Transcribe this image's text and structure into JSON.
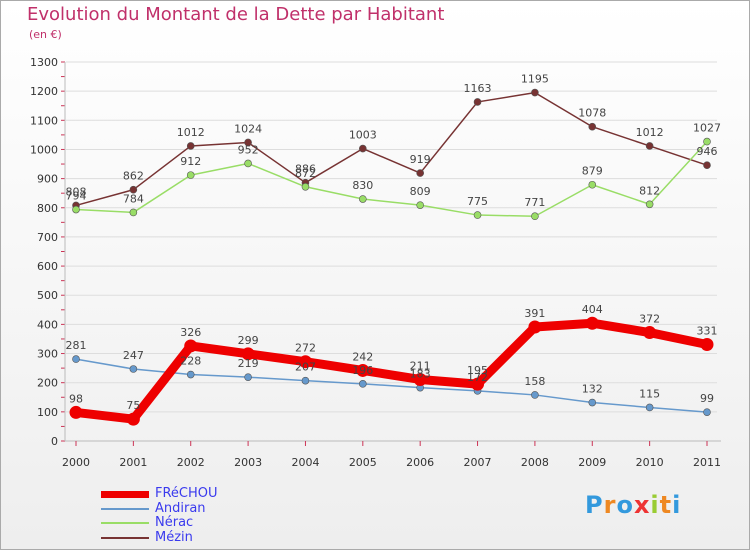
{
  "header": {
    "title": "Evolution du Montant de la Dette par Habitant",
    "subtitle": "(en €)"
  },
  "logo": {
    "text": "Proxiti"
  },
  "chart_data": {
    "type": "line",
    "title": "Evolution du Montant de la Dette par Habitant",
    "subtitle": "(en €)",
    "xlabel": "",
    "ylabel": "",
    "x": [
      "2000",
      "2001",
      "2002",
      "2003",
      "2004",
      "2005",
      "2006",
      "2007",
      "2008",
      "2009",
      "2010",
      "2011"
    ],
    "ylim": [
      0,
      1300
    ],
    "yticks": [
      0,
      100,
      200,
      300,
      400,
      500,
      600,
      700,
      800,
      900,
      1000,
      1100,
      1200,
      1300
    ],
    "grid": true,
    "legend_position": "bottom-left",
    "series": [
      {
        "name": "FRéCHOU",
        "color": "#ee0000",
        "values": [
          98,
          75,
          326,
          299,
          272,
          242,
          211,
          195,
          391,
          404,
          372,
          331
        ]
      },
      {
        "name": "Andiran",
        "color": "#6699cc",
        "values": [
          281,
          247,
          228,
          219,
          207,
          196,
          183,
          172,
          158,
          132,
          115,
          99
        ]
      },
      {
        "name": "Nérac",
        "color": "#99dd66",
        "values": [
          794,
          784,
          912,
          952,
          872,
          830,
          809,
          775,
          771,
          879,
          812,
          1027
        ]
      },
      {
        "name": "Mézin",
        "color": "#773333",
        "values": [
          808,
          862,
          1012,
          1024,
          886,
          1003,
          919,
          1163,
          1195,
          1078,
          1012,
          946
        ]
      }
    ]
  }
}
